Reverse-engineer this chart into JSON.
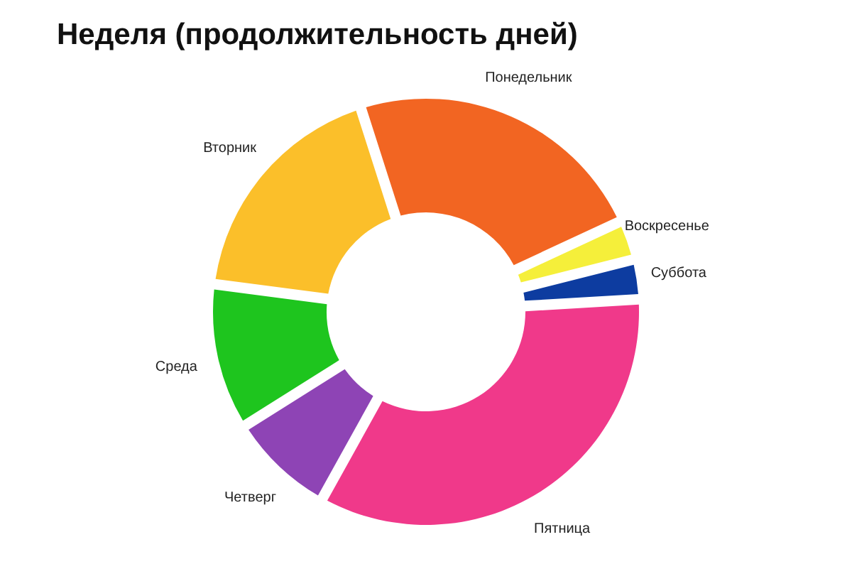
{
  "chart_data": {
    "type": "donut",
    "title": "Неделя (продолжительность дней)",
    "categories": [
      "Понедельник",
      "Воскресенье",
      "Суббота",
      "Пятница",
      "Четверг",
      "Среда",
      "Вторник"
    ],
    "values": [
      23,
      3,
      3,
      34,
      8,
      11,
      18
    ],
    "colors": [
      "#f26522",
      "#f5ef3a",
      "#0d3ca0",
      "#f0398a",
      "#8e44b5",
      "#1ec51e",
      "#fbbf2a"
    ]
  }
}
